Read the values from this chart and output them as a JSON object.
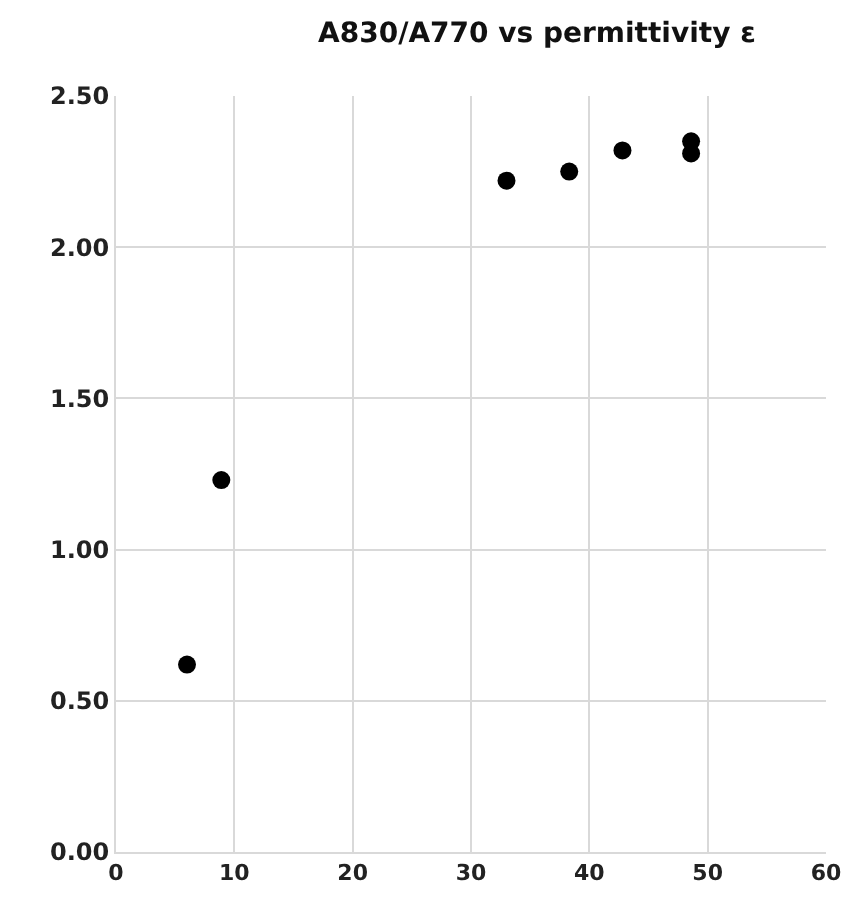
{
  "chart_data": {
    "type": "scatter",
    "title": "A830/A770 vs permittivity ε",
    "x": [
      6.0,
      8.9,
      33.0,
      38.3,
      42.8,
      48.6,
      48.6
    ],
    "series": [
      {
        "color": "#000000",
        "values": [
          0.62,
          1.23,
          2.22,
          2.25,
          2.32,
          2.31,
          2.35
        ]
      }
    ],
    "xlim": [
      0,
      60
    ],
    "xticks": [
      0,
      10,
      20,
      30,
      40,
      50,
      60
    ],
    "ylim": [
      0,
      2.5
    ],
    "yticks": [
      {
        "value": 0,
        "label": "0.00"
      },
      {
        "value": 0.5,
        "label": "0.50"
      },
      {
        "value": 1,
        "label": "1.00"
      },
      {
        "value": 1.5,
        "label": "1.50"
      },
      {
        "value": 2,
        "label": "2.00"
      },
      {
        "value": 2.5,
        "label": "2.50"
      }
    ],
    "grid": true,
    "marker": "circle"
  }
}
